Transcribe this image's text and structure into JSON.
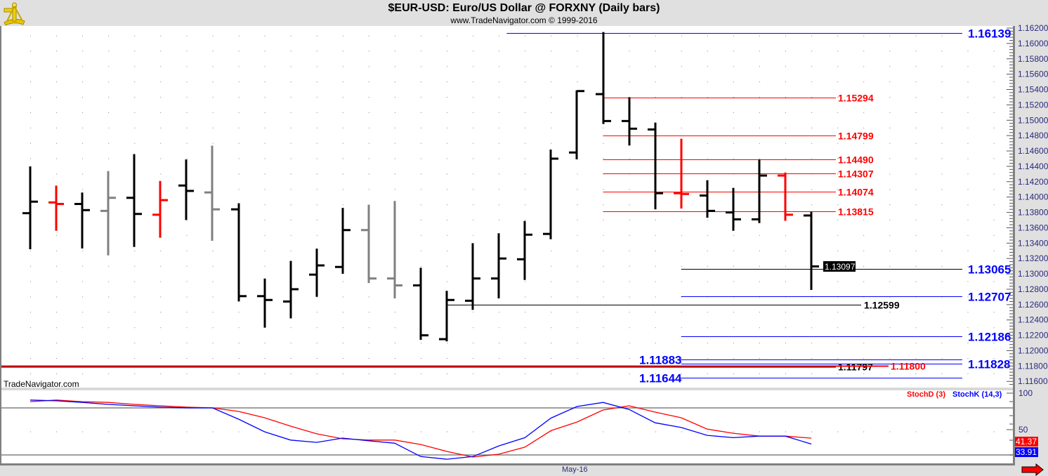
{
  "header": {
    "title": "$EUR-USD:  Euro/US Dollar @ FORXNY  (Daily bars)",
    "subtitle": "www.TradeNavigator.com © 1999-2016",
    "logo_icon": "sextant-icon"
  },
  "watermark": "TradeNavigator.com",
  "last_price_label": "1.13097",
  "stoch_d_value_label": "41.37",
  "stoch_k_value_label": "33.91",
  "x_axis_label": "May-16",
  "nav_arrow_icon": "red-right-arrow-icon",
  "colors": {
    "up": "#000000",
    "down_red": "#ff0000",
    "gray": "#808080",
    "blue": "#0000ff",
    "axis_text": "#2a2a80",
    "panel_bg": "#e0e0e0"
  },
  "chart_data": [
    {
      "type": "ohlc",
      "title": "$EUR-USD:  Euro/US Dollar @ FORXNY  (Daily bars)",
      "ylim": [
        1.1155,
        1.1625
      ],
      "y_ticks": [
        "1.16200",
        "1.16000",
        "1.15800",
        "1.15600",
        "1.15400",
        "1.15200",
        "1.15000",
        "1.14800",
        "1.14600",
        "1.14400",
        "1.14200",
        "1.14000",
        "1.13800",
        "1.13600",
        "1.13400",
        "1.13200",
        "1.13000",
        "1.12800",
        "1.12600",
        "1.12400",
        "1.12200",
        "1.12000",
        "1.11800",
        "1.11600"
      ],
      "grid": "dotted",
      "bars": [
        {
          "o": 1.1379,
          "h": 1.1439,
          "l": 1.1333,
          "c": 1.1394,
          "color": "black"
        },
        {
          "o": 1.1393,
          "h": 1.1414,
          "l": 1.1357,
          "c": 1.1391,
          "color": "red"
        },
        {
          "o": 1.1391,
          "h": 1.1405,
          "l": 1.1334,
          "c": 1.1383,
          "color": "black"
        },
        {
          "o": 1.1382,
          "h": 1.1433,
          "l": 1.1325,
          "c": 1.1399,
          "color": "gray"
        },
        {
          "o": 1.1399,
          "h": 1.1455,
          "l": 1.1336,
          "c": 1.1378,
          "color": "black"
        },
        {
          "o": 1.1377,
          "h": 1.142,
          "l": 1.1348,
          "c": 1.1396,
          "color": "red"
        },
        {
          "o": 1.1415,
          "h": 1.1448,
          "l": 1.1371,
          "c": 1.1408,
          "color": "black"
        },
        {
          "o": 1.1406,
          "h": 1.1466,
          "l": 1.1344,
          "c": 1.1384,
          "color": "gray"
        },
        {
          "o": 1.1384,
          "h": 1.1391,
          "l": 1.1265,
          "c": 1.1271,
          "color": "black"
        },
        {
          "o": 1.1271,
          "h": 1.1293,
          "l": 1.1231,
          "c": 1.1266,
          "color": "black"
        },
        {
          "o": 1.1264,
          "h": 1.1316,
          "l": 1.1243,
          "c": 1.128,
          "color": "black"
        },
        {
          "o": 1.1299,
          "h": 1.1332,
          "l": 1.1271,
          "c": 1.1311,
          "color": "black"
        },
        {
          "o": 1.1309,
          "h": 1.1385,
          "l": 1.1301,
          "c": 1.1357,
          "color": "black"
        },
        {
          "o": 1.1357,
          "h": 1.1389,
          "l": 1.1289,
          "c": 1.1294,
          "color": "gray"
        },
        {
          "o": 1.1294,
          "h": 1.1394,
          "l": 1.1269,
          "c": 1.1285,
          "color": "gray"
        },
        {
          "o": 1.1285,
          "h": 1.1307,
          "l": 1.1215,
          "c": 1.122,
          "color": "black"
        },
        {
          "o": 1.1215,
          "h": 1.1277,
          "l": 1.1213,
          "c": 1.1266,
          "color": "black"
        },
        {
          "o": 1.1265,
          "h": 1.1339,
          "l": 1.1254,
          "c": 1.1294,
          "color": "black"
        },
        {
          "o": 1.1294,
          "h": 1.1352,
          "l": 1.1269,
          "c": 1.132,
          "color": "black"
        },
        {
          "o": 1.1319,
          "h": 1.1368,
          "l": 1.1293,
          "c": 1.1351,
          "color": "black"
        },
        {
          "o": 1.1352,
          "h": 1.1461,
          "l": 1.1346,
          "c": 1.145,
          "color": "black"
        },
        {
          "o": 1.1458,
          "h": 1.1538,
          "l": 1.145,
          "c": 1.1538,
          "color": "black"
        },
        {
          "o": 1.1534,
          "h": 1.16139,
          "l": 1.1496,
          "c": 1.1499,
          "color": "black"
        },
        {
          "o": 1.1499,
          "h": 1.1529,
          "l": 1.1468,
          "c": 1.1489,
          "color": "black"
        },
        {
          "o": 1.1488,
          "h": 1.1496,
          "l": 1.1385,
          "c": 1.1405,
          "color": "black"
        },
        {
          "o": 1.1405,
          "h": 1.1475,
          "l": 1.1386,
          "c": 1.1404,
          "color": "red"
        },
        {
          "o": 1.1402,
          "h": 1.1421,
          "l": 1.1374,
          "c": 1.1382,
          "color": "black"
        },
        {
          "o": 1.138,
          "h": 1.1411,
          "l": 1.1357,
          "c": 1.1371,
          "color": "black"
        },
        {
          "o": 1.1371,
          "h": 1.1448,
          "l": 1.1367,
          "c": 1.1428,
          "color": "black"
        },
        {
          "o": 1.1428,
          "h": 1.1431,
          "l": 1.137,
          "c": 1.1377,
          "color": "red"
        },
        {
          "o": 1.1376,
          "h": 1.138,
          "l": 1.128,
          "c": 1.13097,
          "color": "black"
        }
      ],
      "levels": [
        {
          "value": 1.16139,
          "label": "1.16139",
          "color": "#0000ff",
          "line": "#0000ff",
          "from_bar": 18.3,
          "to": "axis",
          "label_side": "right",
          "size": "large"
        },
        {
          "value": 1.15294,
          "label": "1.15294",
          "color": "#ff0000",
          "line": "#ff0000",
          "from_bar": 22,
          "to": "label",
          "label_side": "mid",
          "size": "small"
        },
        {
          "value": 1.14799,
          "label": "1.14799",
          "color": "#ff0000",
          "line": "#ff0000",
          "from_bar": 22,
          "to": "label",
          "label_side": "mid",
          "size": "small"
        },
        {
          "value": 1.1449,
          "label": "1.14490",
          "color": "#ff0000",
          "line": "#ff0000",
          "from_bar": 22,
          "to": "label",
          "label_side": "mid",
          "size": "small"
        },
        {
          "value": 1.14307,
          "label": "1.14307",
          "color": "#ff0000",
          "line": "#ff0000",
          "from_bar": 22,
          "to": "label",
          "label_side": "mid",
          "size": "small"
        },
        {
          "value": 1.14074,
          "label": "1.14074",
          "color": "#ff0000",
          "line": "#ff0000",
          "from_bar": 22,
          "to": "label",
          "label_side": "mid",
          "size": "small"
        },
        {
          "value": 1.13815,
          "label": "1.13815",
          "color": "#ff0000",
          "line": "#ff0000",
          "from_bar": 22,
          "to": "label",
          "label_side": "mid",
          "size": "small"
        },
        {
          "value": 1.13065,
          "label": "1.13065",
          "color": "#0000ff",
          "line": "#000000",
          "from_bar": 25,
          "to": "axis",
          "label_side": "right",
          "size": "large"
        },
        {
          "value": 1.12707,
          "label": "1.12707",
          "color": "#0000ff",
          "line": "#0000ff",
          "from_bar": 25,
          "to": "axis",
          "label_side": "right",
          "size": "large"
        },
        {
          "value": 1.12599,
          "label": "1.12599",
          "color": "#000000",
          "line": "#000000",
          "from_bar": 16,
          "to": "label",
          "label_side": "far",
          "size": "small"
        },
        {
          "value": 1.12186,
          "label": "1.12186",
          "color": "#0000ff",
          "line": "#0000ff",
          "from_bar": 25,
          "to": "axis",
          "label_side": "right",
          "size": "large"
        },
        {
          "value": 1.11883,
          "label": "1.11883",
          "color": "#0000ff",
          "line": "#0000ff",
          "from_bar": 25,
          "to": "axis",
          "label_side": "left",
          "size": "large"
        },
        {
          "value": 1.11828,
          "label": "1.11828",
          "color": "#0000ff",
          "line": "#0000ff",
          "from_bar": 25,
          "to": "axis",
          "label_side": "right",
          "size": "large"
        },
        {
          "value": 1.11797,
          "label": "1.11797",
          "color": "#000000",
          "line": "#000000",
          "from_bar": -2,
          "to": "label",
          "label_side": "mid",
          "size": "small"
        },
        {
          "value": 1.118,
          "label": "1.11800",
          "color": "#ff0000",
          "line": "#ff0000",
          "from_bar": -2,
          "to": "label",
          "label_side": "far2",
          "size": "small"
        },
        {
          "value": 1.11644,
          "label": "1.11644",
          "color": "#0000ff",
          "line": "#0000ff",
          "from_bar": 25,
          "to": "axis",
          "label_side": "left",
          "size": "large"
        }
      ]
    },
    {
      "type": "line",
      "ylim": [
        0,
        100
      ],
      "y_ticks": [
        "100",
        "50"
      ],
      "reference_lines": [
        80,
        20
      ],
      "x_tick_labels": [
        "May-16"
      ],
      "series": [
        {
          "name": "StochD (3)",
          "color": "#ff0000",
          "values": [
            88,
            90,
            88,
            87,
            84.5,
            82.7,
            81,
            80,
            75.5,
            67.5,
            56.7,
            47,
            40.6,
            39,
            39,
            33.4,
            24.5,
            17.3,
            21,
            30,
            51,
            62,
            77.3,
            82.7,
            74.6,
            67.5,
            53,
            47.7,
            44,
            44,
            41.37
          ]
        },
        {
          "name": "StochK (14,3)",
          "color": "#0000ff",
          "values": [
            90,
            89,
            87,
            84.5,
            82.7,
            81,
            80,
            80,
            65.7,
            49.6,
            39,
            36,
            41.5,
            38,
            35,
            18,
            14.6,
            18,
            31.6,
            42,
            67,
            81.8,
            87,
            78,
            61,
            55,
            45,
            42,
            44,
            44,
            33.91
          ]
        }
      ]
    }
  ]
}
